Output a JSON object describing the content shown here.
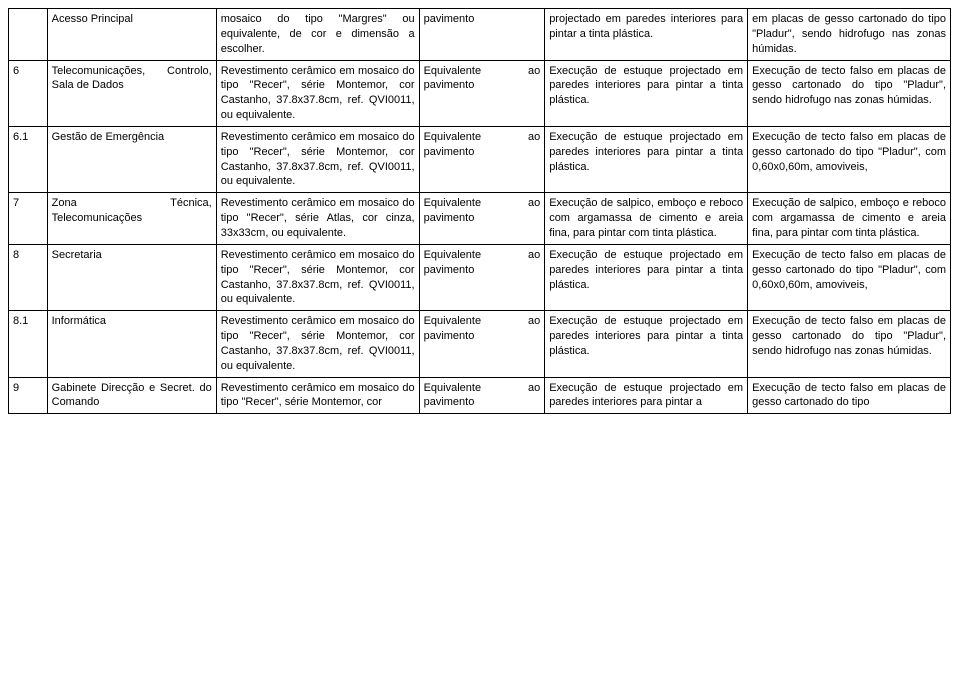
{
  "rows": [
    {
      "num": "",
      "room": "Acesso Principal",
      "floor": "mosaico do tipo \"Margres\" ou equivalente, de cor e dimensão a escolher.",
      "skirt": "pavimento",
      "wall": "projectado em paredes interiores para pintar a tinta plástica.",
      "ceil": "em placas de gesso cartonado do tipo \"Pladur\", sendo hidrofugo nas zonas húmidas."
    },
    {
      "num": "6",
      "room": "Telecomunicações, Controlo, Sala de Dados",
      "floor": "Revestimento cerâmico em mosaico do tipo \"Recer\", série Montemor, cor Castanho, 37.8x37.8cm, ref. QVI0011, ou equivalente.",
      "skirt": "Equivalente ao pavimento",
      "wall": "Execução de estuque projectado em paredes interiores para pintar a tinta plástica.",
      "ceil": "Execução de tecto falso em placas de gesso cartonado do tipo \"Pladur\", sendo hidrofugo nas zonas húmidas."
    },
    {
      "num": "6.1",
      "room": "Gestão de Emergência",
      "floor": "Revestimento cerâmico em mosaico do tipo \"Recer\", série Montemor, cor Castanho, 37.8x37.8cm, ref. QVI0011, ou equivalente.",
      "skirt": "Equivalente ao pavimento",
      "wall": "Execução de estuque projectado em paredes interiores para pintar a tinta plástica.",
      "ceil": "Execução de tecto falso em placas de gesso cartonado do tipo \"Pladur\", com 0,60x0,60m, amoviveis,"
    },
    {
      "num": "7",
      "room": "Zona Técnica, Telecomunicações",
      "floor": "Revestimento cerâmico em mosaico do tipo \"Recer\", série Atlas, cor cinza, 33x33cm, ou equivalente.",
      "skirt": "Equivalente ao pavimento",
      "wall": "Execução de salpico, emboço e reboco com argamassa de cimento e areia fina, para pintar com tinta plástica.",
      "ceil": "Execução de salpico, emboço e reboco com argamassa de cimento e areia fina, para pintar com tinta plástica."
    },
    {
      "num": "8",
      "room": "Secretaria",
      "floor": "Revestimento cerâmico em mosaico do tipo \"Recer\", série Montemor, cor Castanho, 37.8x37.8cm, ref. QVI0011, ou equivalente.",
      "skirt": "Equivalente ao pavimento",
      "wall": "Execução de estuque projectado em paredes interiores para pintar a tinta plástica.",
      "ceil": "Execução de tecto falso em placas de gesso cartonado do tipo \"Pladur\", com 0,60x0,60m, amoviveis,"
    },
    {
      "num": "8.1",
      "room": "Informática",
      "floor": "Revestimento cerâmico em mosaico do tipo \"Recer\", série Montemor, cor Castanho, 37.8x37.8cm, ref. QVI0011, ou equivalente.",
      "skirt": "Equivalente ao pavimento",
      "wall": "Execução de estuque projectado em paredes interiores para pintar a tinta plástica.",
      "ceil": "Execução de tecto falso em placas de gesso cartonado do tipo \"Pladur\", sendo hidrofugo nas zonas húmidas."
    },
    {
      "num": "9",
      "room": "Gabinete Direcção e Secret. do Comando",
      "floor": "Revestimento cerâmico em mosaico do tipo \"Recer\", série Montemor, cor",
      "skirt": "Equivalente ao pavimento",
      "wall": "Execução de estuque projectado em paredes interiores para pintar a",
      "ceil": "Execução de tecto falso em placas de gesso cartonado do tipo"
    }
  ]
}
